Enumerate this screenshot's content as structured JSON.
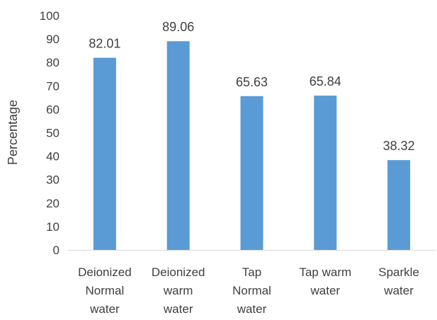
{
  "chart_data": {
    "type": "bar",
    "categories": [
      [
        "Deionized",
        "Normal",
        "water"
      ],
      [
        "Deionized",
        "warm",
        "water"
      ],
      [
        "Tap",
        "Normal",
        "water"
      ],
      [
        "Tap warm",
        "water"
      ],
      [
        "Sparkle",
        "water"
      ]
    ],
    "values": [
      82.01,
      89.06,
      65.63,
      65.84,
      38.32
    ],
    "value_labels": [
      "82.01",
      "89.06",
      "65.63",
      "65.84",
      "38.32"
    ],
    "title": "",
    "xlabel": "",
    "ylabel": "Percentage",
    "ylim": [
      0,
      100
    ],
    "yticks": [
      0,
      10,
      20,
      30,
      40,
      50,
      60,
      70,
      80,
      90,
      100
    ],
    "grid": false,
    "colors": {
      "bar": "#5b9bd5",
      "axis": "#d9d9d9",
      "text": "#404040"
    }
  }
}
